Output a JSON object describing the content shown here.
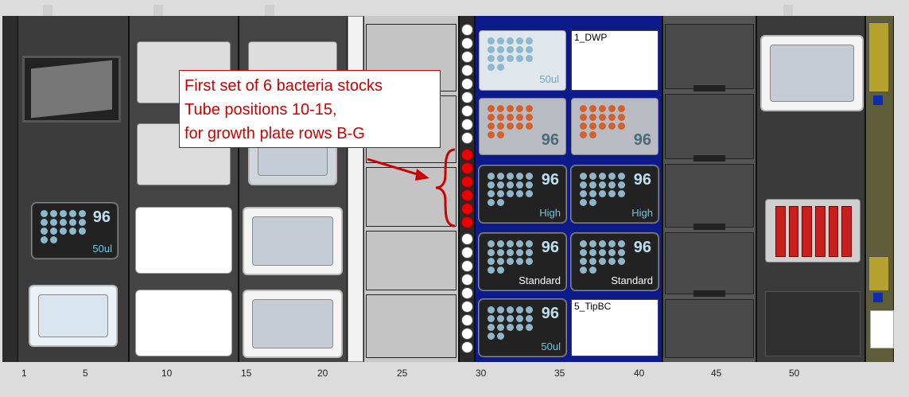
{
  "deck": {
    "tick_labels": [
      "1",
      "5",
      "10",
      "15",
      "20",
      "25",
      "30",
      "35",
      "40",
      "45",
      "50"
    ]
  },
  "callout": {
    "line1": "First set of 6 bacteria stocks",
    "line2": "Tube positions 10-15,",
    "line3": "for growth plate rows B-G"
  },
  "labware": {
    "tip96_50ul_left": {
      "num": "96",
      "sub": "50ul"
    },
    "plate_50ul": {
      "sub": "50ul"
    },
    "dwp_label": "1_DWP",
    "plate96_a": {
      "num": "96"
    },
    "plate96_b": {
      "num": "96"
    },
    "tip96_high_a": {
      "num": "96",
      "sub": "High"
    },
    "tip96_high_b": {
      "num": "96",
      "sub": "High"
    },
    "tip96_std_a": {
      "num": "96",
      "sub": "Standard"
    },
    "tip96_std_b": {
      "num": "96",
      "sub": "Standard"
    },
    "tip96_50ul_right": {
      "num": "96",
      "sub": "50ul"
    },
    "tipbc_label": "5_TipBC"
  },
  "colors": {
    "highlight": "#e00000",
    "carrier_blue": "#0d1a8a"
  }
}
